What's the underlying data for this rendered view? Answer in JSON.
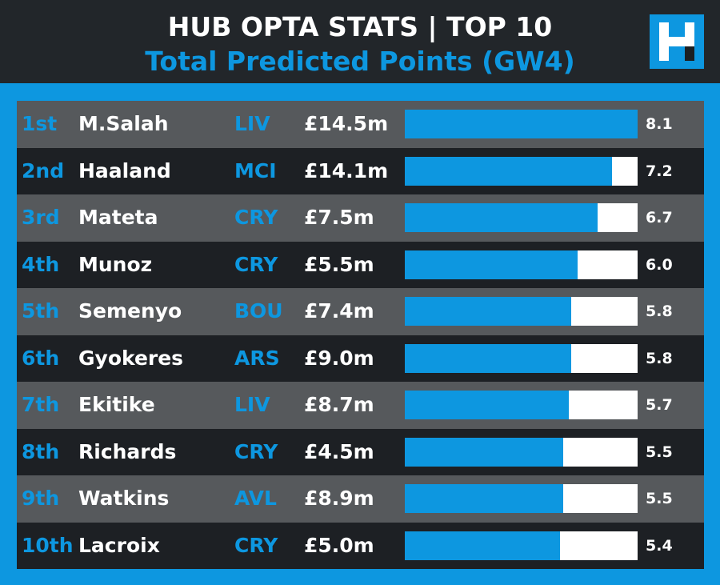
{
  "header": {
    "title": "HUB OPTA STATS | TOP 10",
    "subtitle": "Total Predicted Points (GW4)"
  },
  "colors": {
    "accent": "#0d97e0",
    "row_light": "#56595c",
    "row_dark": "#1d2024",
    "bar_track": "#ffffff"
  },
  "logo": {
    "icon": "hub-h-logo-icon"
  },
  "chart_data": {
    "type": "bar",
    "orientation": "horizontal",
    "xlim": [
      0,
      8.1
    ],
    "rows": [
      {
        "rank": "1st",
        "player": "M.Salah",
        "team": "LIV",
        "price": "£14.5m",
        "value": 8.1,
        "label": "8.1"
      },
      {
        "rank": "2nd",
        "player": "Haaland",
        "team": "MCI",
        "price": "£14.1m",
        "value": 7.2,
        "label": "7.2"
      },
      {
        "rank": "3rd",
        "player": "Mateta",
        "team": "CRY",
        "price": "£7.5m",
        "value": 6.7,
        "label": "6.7"
      },
      {
        "rank": "4th",
        "player": "Munoz",
        "team": "CRY",
        "price": "£5.5m",
        "value": 6.0,
        "label": "6.0"
      },
      {
        "rank": "5th",
        "player": "Semenyo",
        "team": "BOU",
        "price": "£7.4m",
        "value": 5.8,
        "label": "5.8"
      },
      {
        "rank": "6th",
        "player": "Gyokeres",
        "team": "ARS",
        "price": "£9.0m",
        "value": 5.8,
        "label": "5.8"
      },
      {
        "rank": "7th",
        "player": "Ekitike",
        "team": "LIV",
        "price": "£8.7m",
        "value": 5.7,
        "label": "5.7"
      },
      {
        "rank": "8th",
        "player": "Richards",
        "team": "CRY",
        "price": "£4.5m",
        "value": 5.5,
        "label": "5.5"
      },
      {
        "rank": "9th",
        "player": "Watkins",
        "team": "AVL",
        "price": "£8.9m",
        "value": 5.5,
        "label": "5.5"
      },
      {
        "rank": "10th",
        "player": "Lacroix",
        "team": "CRY",
        "price": "£5.0m",
        "value": 5.4,
        "label": "5.4"
      }
    ]
  }
}
